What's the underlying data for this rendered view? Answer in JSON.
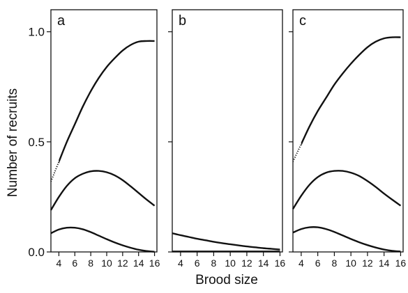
{
  "chart_data": {
    "type": "line",
    "xlabel": "Brood size",
    "ylabel": "Number of recruits",
    "xlim": [
      3,
      16.3
    ],
    "ylim": [
      0,
      1.1
    ],
    "y_ticks": [
      "0.0",
      "0.5",
      "1.0"
    ],
    "x_ticks": [
      "4",
      "6",
      "8",
      "10",
      "12",
      "14",
      "16"
    ],
    "grid": false,
    "panels": [
      {
        "label": "a",
        "series": [
          {
            "style": "dotted-then-solid",
            "x": [
              3,
              4,
              5,
              6,
              7,
              8,
              9,
              10,
              11,
              12,
              13,
              14,
              15,
              16
            ],
            "y": [
              0.32,
              0.41,
              0.5,
              0.58,
              0.66,
              0.73,
              0.79,
              0.84,
              0.88,
              0.915,
              0.94,
              0.955,
              0.958,
              0.958
            ]
          },
          {
            "style": "solid",
            "x": [
              3,
              4,
              5,
              6,
              7,
              8,
              9,
              10,
              11,
              12,
              13,
              14,
              15,
              16
            ],
            "y": [
              0.19,
              0.25,
              0.3,
              0.335,
              0.355,
              0.366,
              0.368,
              0.362,
              0.348,
              0.326,
              0.298,
              0.268,
              0.238,
              0.21
            ]
          },
          {
            "style": "solid",
            "x": [
              3,
              4,
              5,
              6,
              7,
              8,
              9,
              10,
              11,
              12,
              13,
              14,
              15,
              16
            ],
            "y": [
              0.085,
              0.102,
              0.11,
              0.11,
              0.103,
              0.09,
              0.074,
              0.058,
              0.043,
              0.03,
              0.019,
              0.01,
              0.004,
              0.001
            ]
          }
        ]
      },
      {
        "label": "b",
        "series": [
          {
            "style": "solid",
            "x": [
              3,
              4,
              5,
              6,
              7,
              8,
              9,
              10,
              11,
              12,
              13,
              14,
              15,
              16
            ],
            "y": [
              0.085,
              0.076,
              0.068,
              0.06,
              0.053,
              0.046,
              0.04,
              0.035,
              0.03,
              0.025,
              0.021,
              0.017,
              0.014,
              0.011
            ]
          },
          {
            "style": "solid",
            "x": [
              3,
              16
            ],
            "y": [
              0.002,
              0.002
            ]
          }
        ]
      },
      {
        "label": "c",
        "series": [
          {
            "style": "dotted-then-solid",
            "x": [
              3,
              4,
              5,
              6,
              7,
              8,
              9,
              10,
              11,
              12,
              13,
              14,
              15,
              16
            ],
            "y": [
              0.41,
              0.49,
              0.57,
              0.64,
              0.7,
              0.76,
              0.81,
              0.855,
              0.895,
              0.93,
              0.955,
              0.97,
              0.975,
              0.975
            ]
          },
          {
            "style": "solid",
            "x": [
              3,
              4,
              5,
              6,
              7,
              8,
              9,
              10,
              11,
              12,
              13,
              14,
              15,
              16
            ],
            "y": [
              0.195,
              0.255,
              0.305,
              0.34,
              0.36,
              0.368,
              0.368,
              0.36,
              0.345,
              0.322,
              0.295,
              0.265,
              0.237,
              0.21
            ]
          },
          {
            "style": "solid",
            "x": [
              3,
              4,
              5,
              6,
              7,
              8,
              9,
              10,
              11,
              12,
              13,
              14,
              15,
              16
            ],
            "y": [
              0.088,
              0.104,
              0.112,
              0.112,
              0.104,
              0.091,
              0.075,
              0.059,
              0.044,
              0.031,
              0.02,
              0.011,
              0.005,
              0.002
            ]
          }
        ]
      }
    ]
  }
}
